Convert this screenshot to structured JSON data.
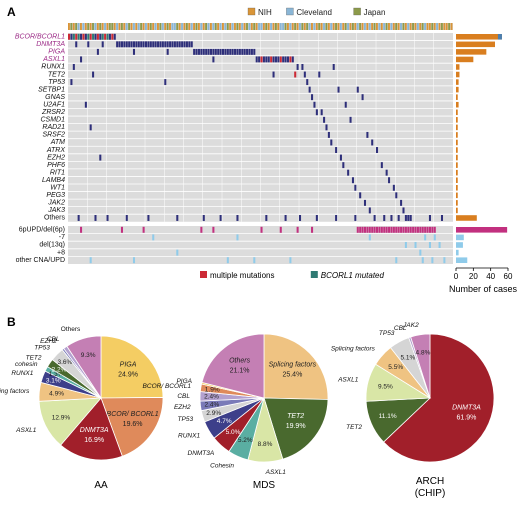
{
  "panel_a_label": "A",
  "panel_b_label": "B",
  "legend_cohort": [
    {
      "label": "NIH",
      "color": "#d99538"
    },
    {
      "label": "Cleveland",
      "color": "#8ab6d6"
    },
    {
      "label": "Japan",
      "color": "#8c9a4a"
    }
  ],
  "legend_mut": [
    {
      "label": "multiple mutations",
      "color": "#cc2a36",
      "italic": false
    },
    {
      "label": "BCORL1 mutated",
      "color": "#2f7a73",
      "italic": true
    }
  ],
  "colors": {
    "bg": "#dcdcdc",
    "grid": "#ffffff",
    "mut": "#2e2f7a",
    "cna": "#c2307f",
    "cna_light": "#8fcbea",
    "bar": "#d97e1f",
    "red": "#cc2a36",
    "teal": "#2f7a73"
  },
  "gene_rows": [
    {
      "label": "BCOR/BCORL1",
      "highlight": true
    },
    {
      "label": "DNMT3A",
      "highlight": true
    },
    {
      "label": "PIGA",
      "highlight": true
    },
    {
      "label": "ASXL1",
      "highlight": true
    },
    {
      "label": "RUNX1",
      "highlight": false
    },
    {
      "label": "TET2",
      "highlight": false
    },
    {
      "label": "TP53",
      "highlight": false
    },
    {
      "label": "SETBP1",
      "highlight": false
    },
    {
      "label": "GNAS",
      "highlight": false
    },
    {
      "label": "U2AF1",
      "highlight": false
    },
    {
      "label": "ZRSR2",
      "highlight": false
    },
    {
      "label": "CSMD1",
      "highlight": false
    },
    {
      "label": "RAD21",
      "highlight": false
    },
    {
      "label": "SRSF2",
      "highlight": false
    },
    {
      "label": "ATM",
      "highlight": false
    },
    {
      "label": "ATRX",
      "highlight": false
    },
    {
      "label": "EZH2",
      "highlight": false
    },
    {
      "label": "PHF6",
      "highlight": false
    },
    {
      "label": "RIT1",
      "highlight": false
    },
    {
      "label": "LAMB4",
      "highlight": false
    },
    {
      "label": "WT1",
      "highlight": false
    },
    {
      "label": "PEG3",
      "highlight": false
    },
    {
      "label": "JAK2",
      "highlight": false
    },
    {
      "label": "JAK3",
      "highlight": false
    },
    {
      "label": "Others",
      "highlight": false
    }
  ],
  "cna_rows": [
    "6pUPD/del(6p)",
    "-7",
    "del(13q)",
    "+8",
    "other CNA/UPD"
  ],
  "chart_data": [
    {
      "type": "bar",
      "orientation": "horizontal",
      "panel": "A",
      "xlabel": "Number of cases",
      "xticks": [
        0,
        20,
        40,
        60
      ],
      "xlim": [
        0,
        60
      ],
      "gene_categories": [
        "BCOR/BCORL1",
        "DNMT3A",
        "PIGA",
        "ASXL1",
        "RUNX1",
        "TET2",
        "TP53",
        "SETBP1",
        "GNAS",
        "U2AF1",
        "ZRSR2",
        "CSMD1",
        "RAD21",
        "SRSF2",
        "ATM",
        "ATRX",
        "EZH2",
        "PHF6",
        "RIT1",
        "LAMB4",
        "WT1",
        "PEG3",
        "JAK2",
        "JAK3",
        "Others"
      ],
      "gene_values": [
        53,
        45,
        35,
        20,
        4,
        4,
        3,
        3,
        2,
        3,
        2,
        2,
        2,
        2,
        2,
        2,
        2,
        2,
        2,
        2,
        2,
        2,
        2,
        2,
        24
      ],
      "cna_categories": [
        "6pUPD/del(6p)",
        "-7",
        "del(13q)",
        "+8",
        "other CNA/UPD"
      ],
      "cna_values": [
        59,
        9,
        8,
        3,
        13
      ]
    },
    {
      "type": "pie",
      "title": "AA",
      "slices": [
        {
          "label": "PIGA",
          "value": 24.9,
          "pct": "24.9%",
          "color": "#f4cd63"
        },
        {
          "label": "BCOR/ BCORL1",
          "value": 19.6,
          "pct": "19.6%",
          "color": "#df8a5b"
        },
        {
          "label": "DNMT3A",
          "value": 16.9,
          "pct": "16.9%",
          "color": "#a11f2a"
        },
        {
          "label": "ASXL1",
          "value": 12.9,
          "pct": "12.9%",
          "color": "#d9e6a6"
        },
        {
          "label": "Splicing factors",
          "value": 4.9,
          "pct": "4.9%",
          "color": "#efc382"
        },
        {
          "label": "RUNX1",
          "value": 3.1,
          "pct": "3.1%",
          "color": "#3d3f8a"
        },
        {
          "label": "cohesin",
          "value": 1.3,
          "pct": "1.3%",
          "color": "#5aaea2"
        },
        {
          "label": "TET2",
          "value": 2.2,
          "pct": "2.2%",
          "color": "#49692e"
        },
        {
          "label": "TP53",
          "value": 3.6,
          "pct": "3.6%",
          "color": "#d5d5d5"
        },
        {
          "label": "EZH2",
          "value": 0.5,
          "pct": "",
          "color": "#7a7ab8"
        },
        {
          "label": "CBL",
          "value": 1.0,
          "pct": "",
          "color": "#b3a1cf"
        },
        {
          "label": "Others",
          "value": 9.3,
          "pct": "9.3%",
          "color": "#c47fb4"
        }
      ],
      "displayed_pcts": [
        "24.9%",
        "19.6%",
        "16.9%",
        "12.9%",
        "4.9%",
        "3.1%",
        "1.3%",
        "2.2%",
        "3.6%",
        "9.3%"
      ]
    },
    {
      "type": "pie",
      "title": "MDS",
      "slices": [
        {
          "label": "Splicing factors",
          "value": 25.4,
          "pct": "25.4%",
          "color": "#efc382"
        },
        {
          "label": "TET2",
          "value": 19.9,
          "pct": "19.9%",
          "color": "#49692e"
        },
        {
          "label": "ASXL1",
          "value": 8.8,
          "pct": "8.8%",
          "color": "#d9e6a6"
        },
        {
          "label": "Cohesin",
          "value": 5.2,
          "pct": "5.2%",
          "color": "#5aaea2"
        },
        {
          "label": "DNMT3A",
          "value": 5.0,
          "pct": "5.0%",
          "color": "#a11f2a"
        },
        {
          "label": "RUNX1",
          "value": 4.7,
          "pct": "4.7%",
          "color": "#3d3f8a"
        },
        {
          "label": "TP53",
          "value": 2.9,
          "pct": "2.9%",
          "color": "#d5d5d5"
        },
        {
          "label": "EZH2",
          "value": 2.4,
          "pct": "2.4%",
          "color": "#7a7ab8"
        },
        {
          "label": "CBL",
          "value": 2.4,
          "pct": "2.4%",
          "color": "#b3a1cf"
        },
        {
          "label": "BCOR/ BCORL1",
          "value": 1.9,
          "pct": "1.9%",
          "color": "#df8a5b"
        },
        {
          "label": "PIGA",
          "value": 0.4,
          "pct": "",
          "color": "#f4cd63"
        },
        {
          "label": "Others",
          "value": 21.1,
          "pct": "21.1%",
          "color": "#c47fb4"
        }
      ]
    },
    {
      "type": "pie",
      "title": "ARCH (CHIP)",
      "slices": [
        {
          "label": "DNMT3A",
          "value": 61.9,
          "pct": "61.9%",
          "color": "#a11f2a"
        },
        {
          "label": "TET2",
          "value": 11.1,
          "pct": "11.1%",
          "color": "#49692e"
        },
        {
          "label": "ASXL1",
          "value": 9.5,
          "pct": "9.5%",
          "color": "#d9e6a6"
        },
        {
          "label": "Splicing factors",
          "value": 5.5,
          "pct": "5.5%",
          "color": "#efc382"
        },
        {
          "label": "TP53",
          "value": 5.1,
          "pct": "5.1%",
          "color": "#d5d5d5"
        },
        {
          "label": "CBL",
          "value": 0.5,
          "pct": "",
          "color": "#b3a1cf"
        },
        {
          "label": "JAK2",
          "value": 4.8,
          "pct": "4.8%",
          "color": "#c47fb4"
        }
      ]
    }
  ]
}
